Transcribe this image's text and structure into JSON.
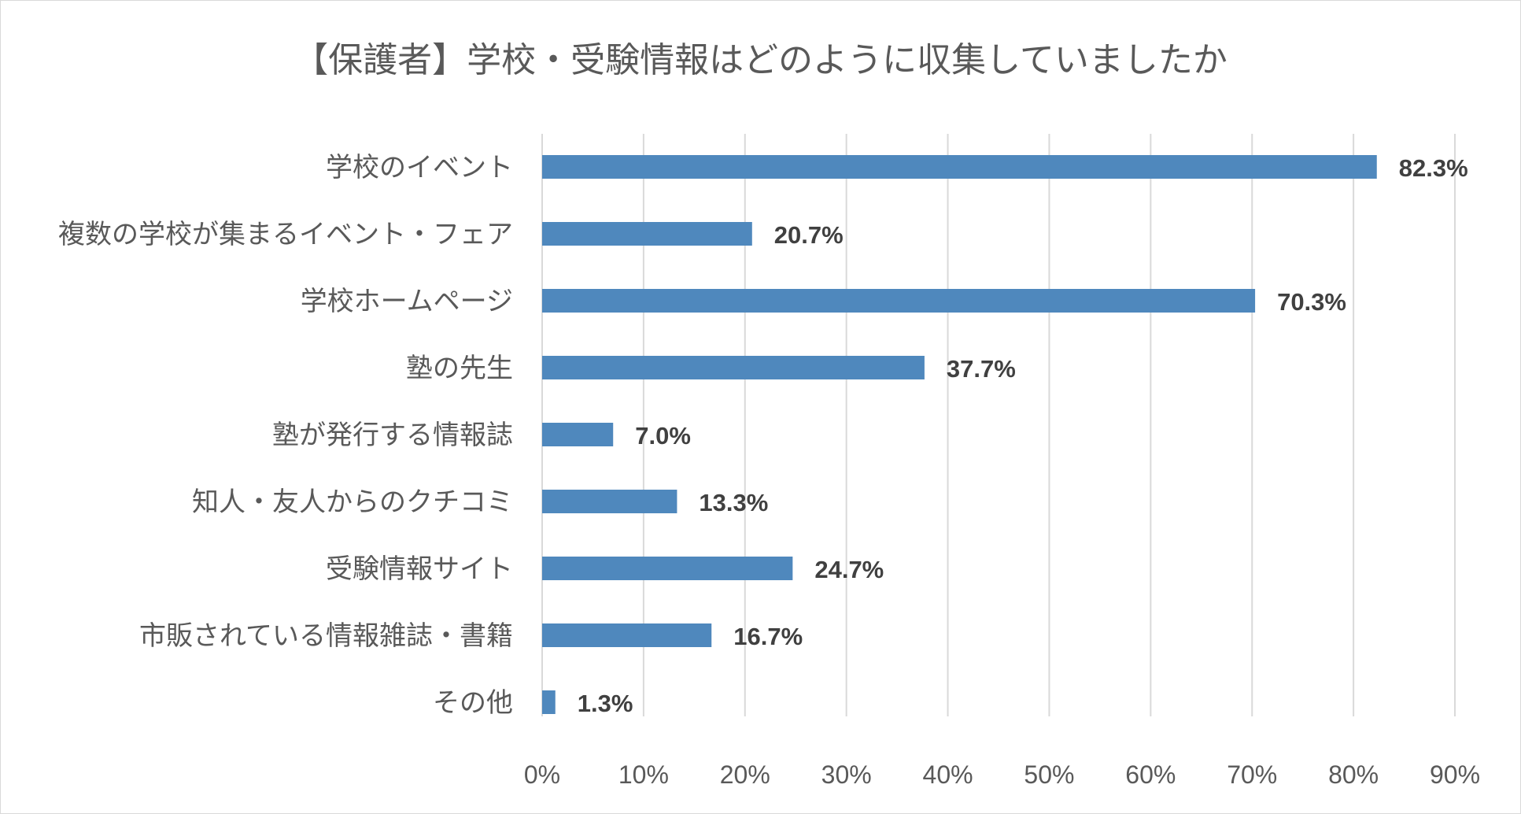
{
  "chart_data": {
    "type": "bar",
    "orientation": "horizontal",
    "title": "【保護者】学校・受験情報はどのように収集していましたか",
    "categories": [
      "学校のイベント",
      "複数の学校が集まるイベント・フェア",
      "学校ホームページ",
      "塾の先生",
      "塾が発行する情報誌",
      "知人・友人からのクチコミ",
      "受験情報サイト",
      "市販されている情報雑誌・書籍",
      "その他"
    ],
    "values": [
      82.3,
      20.7,
      70.3,
      37.7,
      7.0,
      13.3,
      24.7,
      16.7,
      1.3
    ],
    "value_labels": [
      "82.3%",
      "20.7%",
      "70.3%",
      "37.7%",
      "7.0%",
      "13.3%",
      "24.7%",
      "16.7%",
      "1.3%"
    ],
    "xlim": [
      0,
      90
    ],
    "x_ticks": [
      0,
      10,
      20,
      30,
      40,
      50,
      60,
      70,
      80,
      90
    ],
    "x_tick_labels": [
      "0%",
      "10%",
      "20%",
      "30%",
      "40%",
      "50%",
      "60%",
      "70%",
      "80%",
      "90%"
    ],
    "grid": "vertical",
    "legend": "none",
    "bar_color": "#4f88bd",
    "grid_color": "#d9d9d9",
    "text_color": "#595959",
    "label_color": "#404040"
  }
}
